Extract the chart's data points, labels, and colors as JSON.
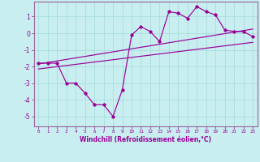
{
  "title": "",
  "xlabel": "Windchill (Refroidissement éolien,°C)",
  "ylabel": "",
  "bg_color": "#c8eef0",
  "grid_color": "#aadddd",
  "line_color": "#990099",
  "spine_color": "#996699",
  "x_data": [
    0,
    1,
    2,
    3,
    4,
    5,
    6,
    7,
    8,
    9,
    10,
    11,
    12,
    13,
    14,
    15,
    16,
    17,
    18,
    19,
    20,
    21,
    22,
    23
  ],
  "y_main": [
    -1.8,
    -1.8,
    -1.8,
    -3.0,
    -3.0,
    -3.6,
    -4.3,
    -4.3,
    -5.0,
    -3.4,
    -0.1,
    0.4,
    0.1,
    -0.5,
    1.3,
    1.2,
    0.9,
    1.6,
    1.3,
    1.1,
    0.2,
    0.1,
    0.1,
    -0.2
  ],
  "reg_line1_x": [
    0,
    23
  ],
  "reg_line1_y": [
    -1.85,
    0.25
  ],
  "reg_line2_x": [
    0,
    23
  ],
  "reg_line2_y": [
    -2.15,
    -0.55
  ],
  "xlim": [
    -0.5,
    23.5
  ],
  "ylim": [
    -5.6,
    1.9
  ],
  "yticks": [
    1,
    0,
    -1,
    -2,
    -3,
    -4,
    -5
  ],
  "xticks": [
    0,
    1,
    2,
    3,
    4,
    5,
    6,
    7,
    8,
    9,
    10,
    11,
    12,
    13,
    14,
    15,
    16,
    17,
    18,
    19,
    20,
    21,
    22,
    23
  ]
}
